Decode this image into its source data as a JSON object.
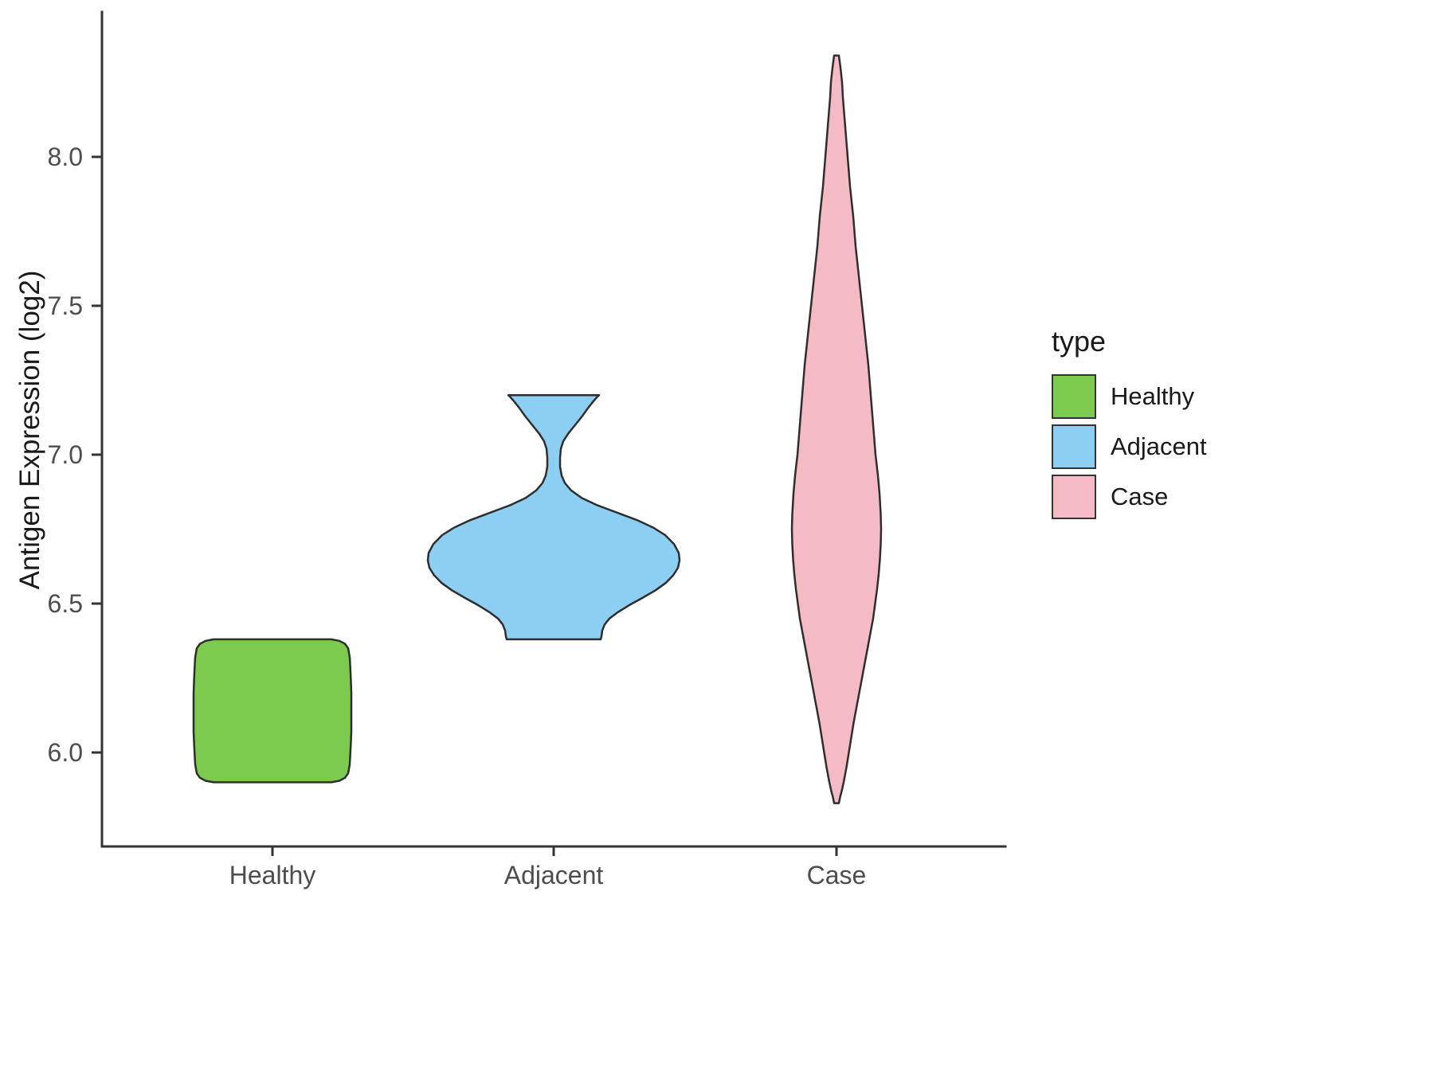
{
  "chart_data": {
    "type": "violin",
    "title": "",
    "xlabel": "",
    "ylabel": "Antigen Expression (log2)",
    "categories": [
      "Healthy",
      "Adjacent",
      "Case"
    ],
    "y_ticks": [
      6.0,
      6.5,
      7.0,
      7.5,
      8.0
    ],
    "y_tick_labels": [
      "6.0",
      "6.5",
      "7.0",
      "7.5",
      "8.0"
    ],
    "ylim": [
      5.72,
      8.42
    ],
    "grid": "off",
    "legend_position": "right",
    "axis_color": "#333333",
    "tick_text_color": "#4D4D4D",
    "outline_color": "#2E2E2E",
    "series": [
      {
        "name": "Healthy",
        "fill": "#7CCB4E",
        "y_min": 5.9,
        "y_max": 6.38,
        "profile": [
          [
            6.38,
            74
          ],
          [
            6.375,
            84
          ],
          [
            6.365,
            91
          ],
          [
            6.35,
            95
          ],
          [
            6.32,
            97
          ],
          [
            6.27,
            98
          ],
          [
            6.2,
            99
          ],
          [
            6.14,
            99
          ],
          [
            6.07,
            99
          ],
          [
            6.01,
            98
          ],
          [
            5.96,
            97
          ],
          [
            5.93,
            95
          ],
          [
            5.915,
            91
          ],
          [
            5.905,
            84
          ],
          [
            5.9,
            74
          ]
        ]
      },
      {
        "name": "Adjacent",
        "fill": "#8DCFF2",
        "y_min": 6.38,
        "y_max": 7.2,
        "profile": [
          [
            7.2,
            57
          ],
          [
            7.195,
            55
          ],
          [
            7.18,
            50
          ],
          [
            7.16,
            44
          ],
          [
            7.13,
            36
          ],
          [
            7.1,
            27
          ],
          [
            7.07,
            18
          ],
          [
            7.045,
            12
          ],
          [
            7.02,
            9
          ],
          [
            6.99,
            8
          ],
          [
            6.96,
            8
          ],
          [
            6.93,
            10
          ],
          [
            6.905,
            14
          ],
          [
            6.88,
            22
          ],
          [
            6.855,
            35
          ],
          [
            6.83,
            55
          ],
          [
            6.805,
            80
          ],
          [
            6.78,
            105
          ],
          [
            6.755,
            125
          ],
          [
            6.73,
            140
          ],
          [
            6.7,
            151
          ],
          [
            6.67,
            157
          ],
          [
            6.645,
            158
          ],
          [
            6.62,
            156
          ],
          [
            6.595,
            150
          ],
          [
            6.57,
            141
          ],
          [
            6.545,
            128
          ],
          [
            6.52,
            112
          ],
          [
            6.495,
            95
          ],
          [
            6.47,
            80
          ],
          [
            6.45,
            70
          ],
          [
            6.43,
            64
          ],
          [
            6.41,
            61
          ],
          [
            6.39,
            60
          ],
          [
            6.38,
            59
          ]
        ]
      },
      {
        "name": "Case",
        "fill": "#F4BAC6",
        "y_min": 5.83,
        "y_max": 8.34,
        "profile": [
          [
            8.34,
            3
          ],
          [
            8.3,
            5
          ],
          [
            8.25,
            7
          ],
          [
            8.2,
            8
          ],
          [
            8.1,
            11
          ],
          [
            8.0,
            14
          ],
          [
            7.9,
            17
          ],
          [
            7.8,
            21
          ],
          [
            7.7,
            24
          ],
          [
            7.6,
            28
          ],
          [
            7.5,
            32
          ],
          [
            7.4,
            36
          ],
          [
            7.3,
            40
          ],
          [
            7.2,
            43
          ],
          [
            7.1,
            46
          ],
          [
            7.0,
            49
          ],
          [
            6.93,
            52
          ],
          [
            6.87,
            54
          ],
          [
            6.8,
            55.5
          ],
          [
            6.75,
            56
          ],
          [
            6.7,
            55.5
          ],
          [
            6.65,
            54.5
          ],
          [
            6.6,
            53
          ],
          [
            6.55,
            51
          ],
          [
            6.5,
            48.5
          ],
          [
            6.45,
            46
          ],
          [
            6.4,
            42.5
          ],
          [
            6.35,
            39
          ],
          [
            6.3,
            35.5
          ],
          [
            6.25,
            32
          ],
          [
            6.2,
            28.5
          ],
          [
            6.15,
            25
          ],
          [
            6.1,
            21.5
          ],
          [
            6.05,
            18.5
          ],
          [
            6.0,
            15.5
          ],
          [
            5.95,
            12.5
          ],
          [
            5.9,
            9
          ],
          [
            5.87,
            6.5
          ],
          [
            5.85,
            4.5
          ],
          [
            5.83,
            3
          ]
        ]
      }
    ],
    "legend": {
      "title": "type",
      "entries": [
        {
          "label": "Healthy",
          "color": "#7CCB4E"
        },
        {
          "label": "Adjacent",
          "color": "#8DCFF2"
        },
        {
          "label": "Case",
          "color": "#F4BAC6"
        }
      ]
    }
  }
}
